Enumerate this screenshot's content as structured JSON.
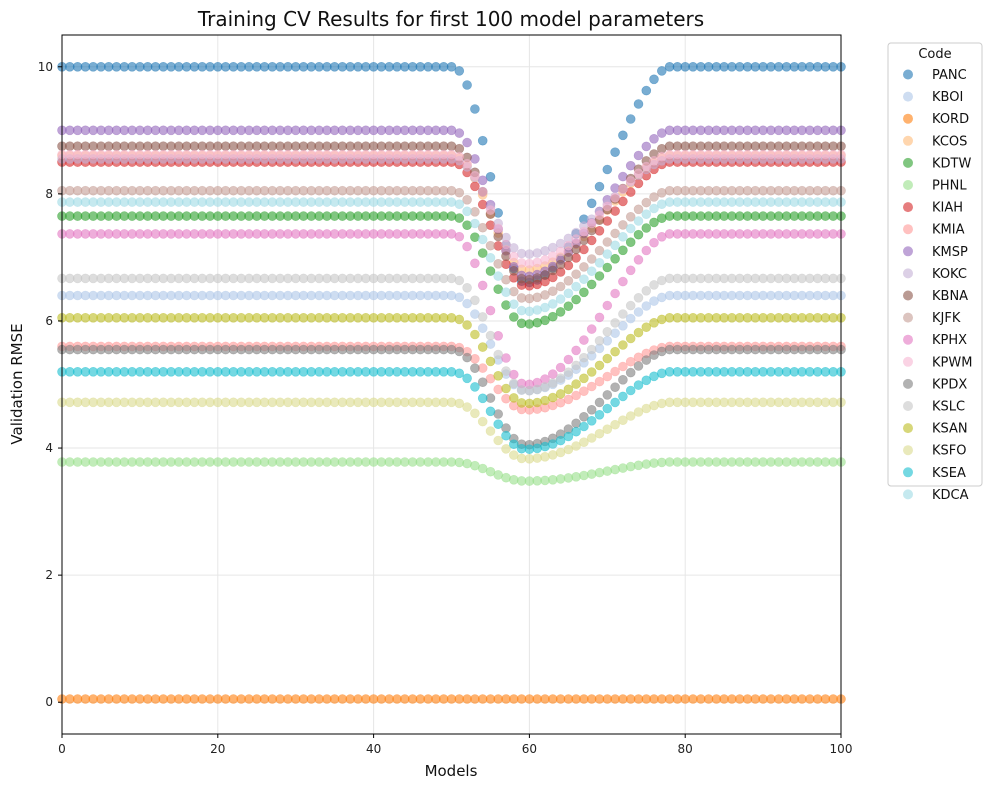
{
  "chart_data": {
    "type": "scatter",
    "title": "Training CV Results for first 100 model parameters",
    "xlabel": "Models",
    "ylabel": "Validation RMSE",
    "xlim": [
      0,
      100
    ],
    "ylim": [
      -0.5,
      10.5
    ],
    "xticks": [
      0,
      20,
      40,
      60,
      80,
      100
    ],
    "yticks": [
      0,
      2,
      4,
      6,
      8,
      10
    ],
    "grid": true,
    "legend": {
      "title": "Code",
      "placement": "outside-right"
    },
    "x": [
      0,
      1,
      2,
      3,
      4,
      5,
      6,
      7,
      8,
      9,
      10,
      11,
      12,
      13,
      14,
      15,
      16,
      17,
      18,
      19,
      20,
      21,
      22,
      23,
      24,
      25,
      26,
      27,
      28,
      29,
      30,
      31,
      32,
      33,
      34,
      35,
      36,
      37,
      38,
      39,
      40,
      41,
      42,
      43,
      44,
      45,
      46,
      47,
      48,
      49,
      50,
      51,
      52,
      53,
      54,
      55,
      56,
      57,
      58,
      59,
      60,
      61,
      62,
      63,
      64,
      65,
      66,
      67,
      68,
      69,
      70,
      71,
      72,
      73,
      74,
      75,
      76,
      77,
      78,
      79,
      80,
      81,
      82,
      83,
      84,
      85,
      86,
      87,
      88,
      89,
      90,
      91,
      92,
      93,
      94,
      95,
      96,
      97,
      98,
      99,
      100
    ],
    "series": [
      {
        "name": "PANC",
        "color": "#1f77b4",
        "alpha": 0.6,
        "baseline": 10.0,
        "dip_min": 6.6
      },
      {
        "name": "KBOI",
        "color": "#aec7e8",
        "alpha": 0.6,
        "baseline": 6.4,
        "dip_min": 4.9
      },
      {
        "name": "KORD",
        "color": "#ff7f0e",
        "alpha": 0.6,
        "baseline": 0.05,
        "dip_min": 0.05
      },
      {
        "name": "KCOS",
        "color": "#ffbb78",
        "alpha": 0.6,
        "baseline": 8.6,
        "dip_min": 6.8
      },
      {
        "name": "KDTW",
        "color": "#2ca02c",
        "alpha": 0.6,
        "baseline": 7.65,
        "dip_min": 5.95
      },
      {
        "name": "PHNL",
        "color": "#98df8a",
        "alpha": 0.6,
        "baseline": 3.78,
        "dip_min": 3.48
      },
      {
        "name": "KIAH",
        "color": "#d62728",
        "alpha": 0.6,
        "baseline": 8.5,
        "dip_min": 6.55
      },
      {
        "name": "KMIA",
        "color": "#ff9896",
        "alpha": 0.6,
        "baseline": 5.6,
        "dip_min": 4.6
      },
      {
        "name": "KMSP",
        "color": "#9467bd",
        "alpha": 0.6,
        "baseline": 9.0,
        "dip_min": 6.7
      },
      {
        "name": "KOKC",
        "color": "#c5b0d5",
        "alpha": 0.6,
        "baseline": 8.55,
        "dip_min": 7.05
      },
      {
        "name": "KBNA",
        "color": "#8c564b",
        "alpha": 0.6,
        "baseline": 8.75,
        "dip_min": 6.65
      },
      {
        "name": "KJFK",
        "color": "#c49c94",
        "alpha": 0.6,
        "baseline": 8.05,
        "dip_min": 6.35
      },
      {
        "name": "KPHX",
        "color": "#e377c2",
        "alpha": 0.6,
        "baseline": 7.37,
        "dip_min": 5.0
      },
      {
        "name": "KPWM",
        "color": "#f7b6d2",
        "alpha": 0.6,
        "baseline": 8.62,
        "dip_min": 6.9
      },
      {
        "name": "KPDX",
        "color": "#7f7f7f",
        "alpha": 0.6,
        "baseline": 5.55,
        "dip_min": 4.05
      },
      {
        "name": "KSLC",
        "color": "#c7c7c7",
        "alpha": 0.6,
        "baseline": 6.67,
        "dip_min": 4.9
      },
      {
        "name": "KSAN",
        "color": "#bcbd22",
        "alpha": 0.6,
        "baseline": 6.05,
        "dip_min": 4.7
      },
      {
        "name": "KSFO",
        "color": "#dbdb8d",
        "alpha": 0.6,
        "baseline": 4.72,
        "dip_min": 3.83
      },
      {
        "name": "KSEA",
        "color": "#17becf",
        "alpha": 0.6,
        "baseline": 5.2,
        "dip_min": 3.98
      },
      {
        "name": "KDCA",
        "color": "#9edae5",
        "alpha": 0.6,
        "baseline": 7.87,
        "dip_min": 6.15
      }
    ],
    "dip": {
      "start": 50,
      "center": 59.5,
      "end": 78
    }
  }
}
